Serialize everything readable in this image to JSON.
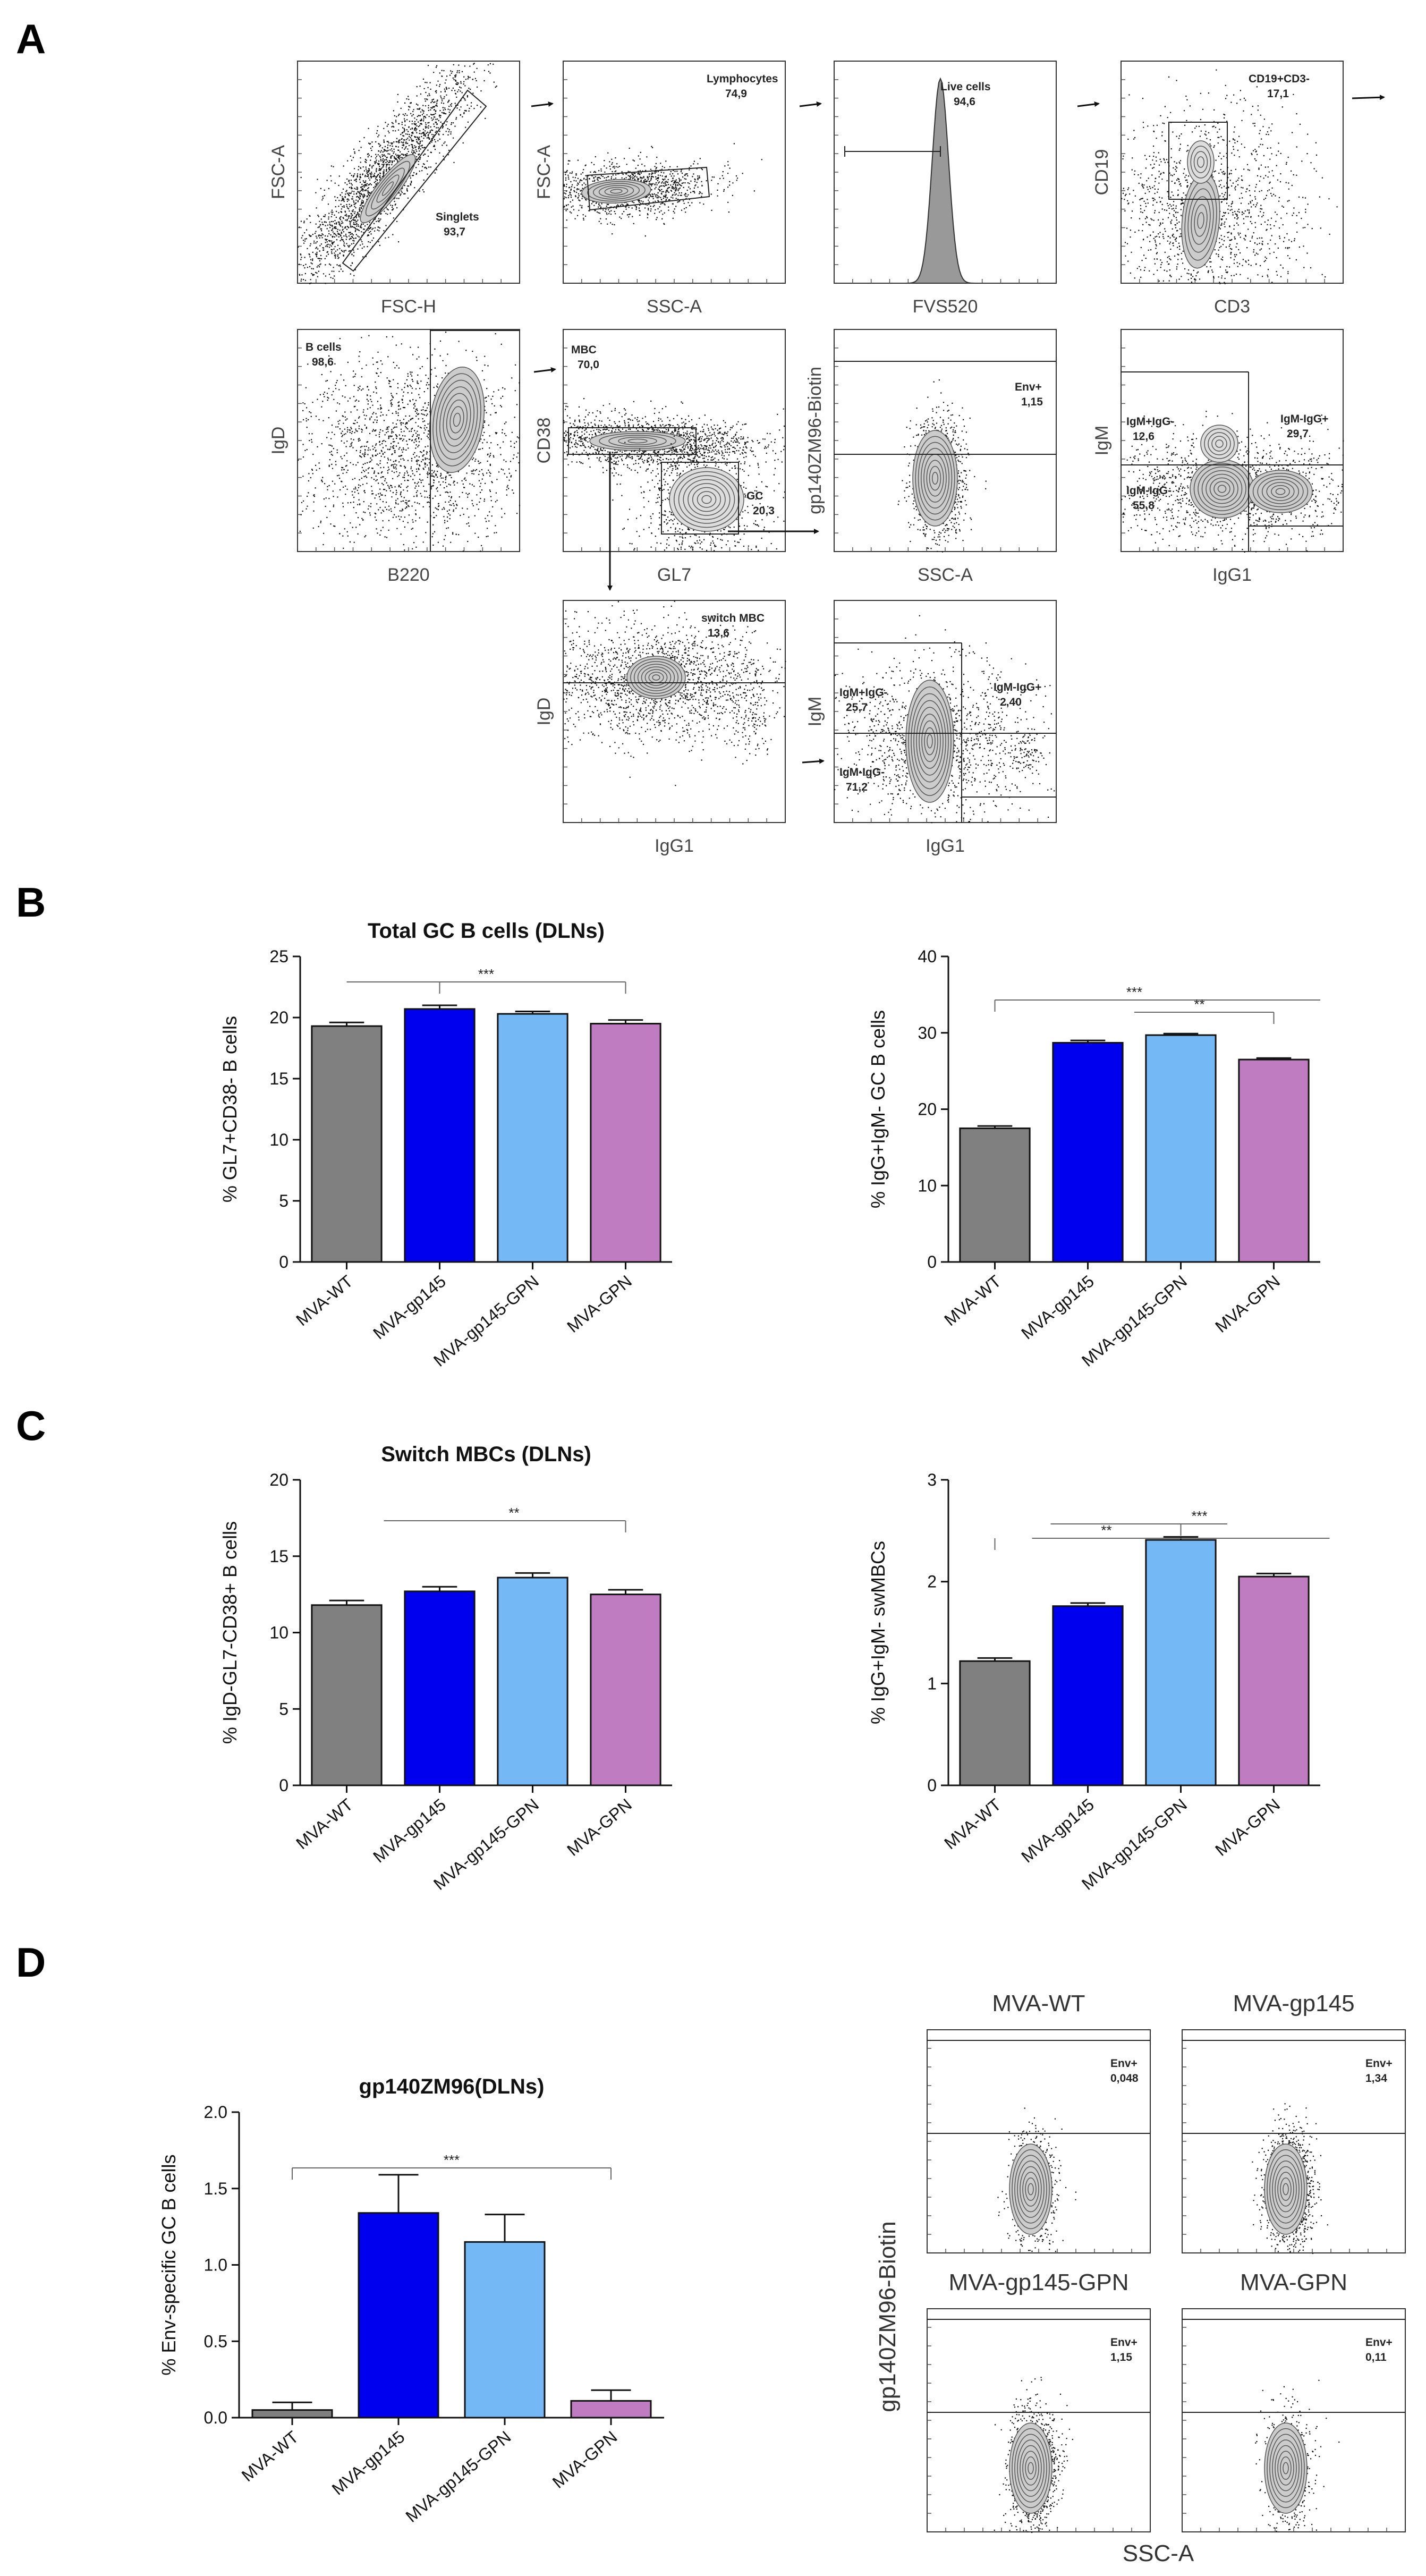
{
  "panel_labels": {
    "A": "A",
    "B": "B",
    "C": "C",
    "D": "D"
  },
  "flow_row1": [
    {
      "ylabel": "FSC-A",
      "xlabel": "FSC-H",
      "gate": "Singlets",
      "value": "93,7",
      "kind": "diag"
    },
    {
      "ylabel": "FSC-A",
      "xlabel": "SSC-A",
      "gate": "Lymphocytes",
      "value": "74,9",
      "kind": "blob"
    },
    {
      "ylabel": "",
      "xlabel": "FVS520",
      "gate": "Live cells",
      "value": "94,6",
      "kind": "hist"
    },
    {
      "ylabel": "CD19",
      "xlabel": "CD3",
      "gate": "CD19+CD3-",
      "value": "17,1",
      "kind": "cd19"
    }
  ],
  "flow_row2": [
    {
      "ylabel": "IgD",
      "xlabel": "B220",
      "gates": [
        {
          "name": "B cells",
          "value": "98,6"
        }
      ]
    },
    {
      "ylabel": "CD38",
      "xlabel": "GL7",
      "gates": [
        {
          "name": "MBC",
          "value": "70,0"
        },
        {
          "name": "GC",
          "value": "20,3"
        }
      ]
    },
    {
      "ylabel": "gp140ZM96-Biotin",
      "xlabel": "SSC-A",
      "gates": [
        {
          "name": "Env+",
          "value": "1,15"
        }
      ]
    },
    {
      "ylabel": "IgM",
      "xlabel": "IgG1",
      "gates": [
        {
          "name": "IgM+IgG-",
          "value": "12,6"
        },
        {
          "name": "IgM-IgG+",
          "value": "29,7"
        },
        {
          "name": "IgM-IgG-",
          "value": "55,8"
        }
      ]
    }
  ],
  "flow_row3": [
    {
      "ylabel": "IgD",
      "xlabel": "IgG1",
      "gates": [
        {
          "name": "switch MBC",
          "value": "13,6"
        }
      ]
    },
    {
      "ylabel": "IgM",
      "xlabel": "IgG1",
      "gates": [
        {
          "name": "IgM+IgG-",
          "value": "25,7"
        },
        {
          "name": "IgM-IgG+",
          "value": "2,40"
        },
        {
          "name": "IgM-IgG-",
          "value": "71,2"
        }
      ]
    }
  ],
  "panel_d_flow": {
    "ylabel": "gp140ZM96-Biotin",
    "xlabel": "SSC-A",
    "plots": [
      {
        "title": "MVA-WT",
        "gate": "Env+",
        "value": "0,048"
      },
      {
        "title": "MVA-gp145",
        "gate": "Env+",
        "value": "1,34"
      },
      {
        "title": "MVA-gp145-GPN",
        "gate": "Env+",
        "value": "1,15"
      },
      {
        "title": "MVA-GPN",
        "gate": "Env+",
        "value": "0,11"
      }
    ]
  },
  "colors": {
    "wt": "#808080",
    "gp145": "#0000ee",
    "gp145gpn": "#74b9f5",
    "gpn": "#c07cc0"
  },
  "chart_data": [
    {
      "type": "bar",
      "id": "B-left",
      "title": "Total GC B cells (DLNs)",
      "ylabel": "% GL7+CD38- B cells",
      "categories": [
        "MVA-WT",
        "MVA-gp145",
        "MVA-gp145-GPN",
        "MVA-GPN"
      ],
      "values": [
        19.3,
        20.7,
        20.3,
        19.5
      ],
      "errors": [
        0.3,
        0.3,
        0.2,
        0.3
      ],
      "ylim": [
        0,
        25
      ],
      "yticks": [
        "0",
        "5",
        "10",
        "15",
        "20",
        "25"
      ],
      "significance": [
        "***"
      ]
    },
    {
      "type": "bar",
      "id": "B-right",
      "title": "",
      "ylabel": "% IgG+IgM- GC B cells",
      "categories": [
        "MVA-WT",
        "MVA-gp145",
        "MVA-gp145-GPN",
        "MVA-GPN"
      ],
      "values": [
        17.5,
        28.7,
        29.7,
        26.5
      ],
      "errors": [
        0.3,
        0.3,
        0.2,
        0.2
      ],
      "ylim": [
        0,
        40
      ],
      "yticks": [
        "0",
        "10",
        "20",
        "30",
        "40"
      ],
      "significance": [
        "***",
        "**"
      ]
    },
    {
      "type": "bar",
      "id": "C-left",
      "title": "Switch MBCs (DLNs)",
      "ylabel": "% IgD-GL7-CD38+ B cells",
      "categories": [
        "MVA-WT",
        "MVA-gp145",
        "MVA-gp145-GPN",
        "MVA-GPN"
      ],
      "values": [
        11.8,
        12.7,
        13.6,
        12.5
      ],
      "errors": [
        0.3,
        0.3,
        0.3,
        0.3
      ],
      "ylim": [
        0,
        20
      ],
      "yticks": [
        "0",
        "5",
        "10",
        "15",
        "20"
      ],
      "significance": [
        "**"
      ]
    },
    {
      "type": "bar",
      "id": "C-right",
      "title": "",
      "ylabel": "% IgG+IgM- swMBCs",
      "categories": [
        "MVA-WT",
        "MVA-gp145",
        "MVA-gp145-GPN",
        "MVA-GPN"
      ],
      "values": [
        1.22,
        1.76,
        2.41,
        2.05
      ],
      "errors": [
        0.03,
        0.03,
        0.03,
        0.03
      ],
      "ylim": [
        0,
        3
      ],
      "yticks": [
        "0",
        "1",
        "2",
        "3"
      ],
      "significance": [
        "**",
        "***"
      ]
    },
    {
      "type": "bar",
      "id": "D",
      "title": "gp140ZM96(DLNs)",
      "ylabel": "% Env-specific GC B cells",
      "categories": [
        "MVA-WT",
        "MVA-gp145",
        "MVA-gp145-GPN",
        "MVA-GPN"
      ],
      "values": [
        0.05,
        1.34,
        1.15,
        0.11
      ],
      "errors": [
        0.05,
        0.25,
        0.18,
        0.07
      ],
      "ylim": [
        0,
        2.0
      ],
      "yticks": [
        "0.0",
        "0.5",
        "1.0",
        "1.5",
        "2.0"
      ],
      "significance": [
        "***"
      ]
    }
  ]
}
